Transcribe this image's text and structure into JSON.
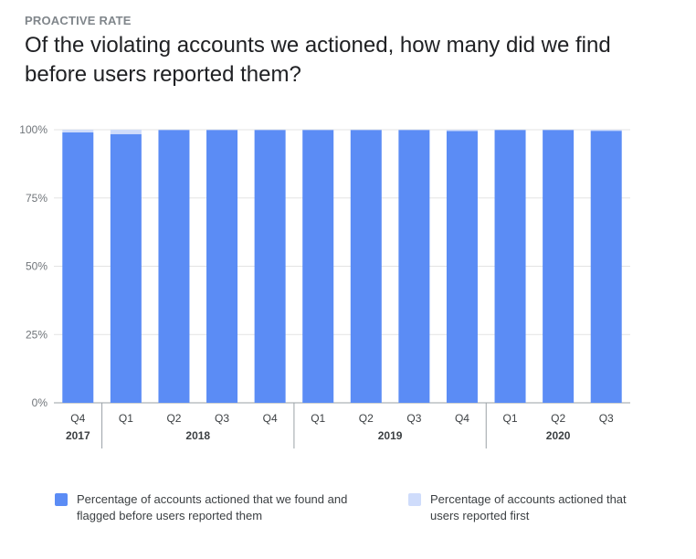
{
  "header": {
    "eyebrow": "PROACTIVE RATE",
    "title": "Of the violating accounts we actioned, how many did we find before users reported them?"
  },
  "chart_data": {
    "type": "bar",
    "stacked": true,
    "categories": [
      "Q4",
      "Q1",
      "Q2",
      "Q3",
      "Q4",
      "Q1",
      "Q2",
      "Q3",
      "Q4",
      "Q1",
      "Q2",
      "Q3"
    ],
    "year_groups": [
      {
        "label": "2017",
        "count": 1
      },
      {
        "label": "2018",
        "count": 4
      },
      {
        "label": "2019",
        "count": 4
      },
      {
        "label": "2020",
        "count": 3
      }
    ],
    "series": [
      {
        "name": "Percentage of accounts actioned that we found and flagged before users reported them",
        "color": "#5b8cf5",
        "values": [
          99.0,
          98.4,
          99.9,
          99.9,
          99.9,
          99.9,
          99.9,
          99.9,
          99.5,
          99.9,
          99.9,
          99.6
        ]
      },
      {
        "name": "Percentage of accounts actioned that users reported first",
        "color": "#cfdcfb",
        "values": [
          1.0,
          1.6,
          0.1,
          0.1,
          0.1,
          0.1,
          0.1,
          0.1,
          0.5,
          0.1,
          0.1,
          0.4
        ]
      }
    ],
    "ylim": [
      0,
      100
    ],
    "yticks": [
      0,
      25,
      50,
      75,
      100
    ],
    "ytick_labels": [
      "0%",
      "25%",
      "50%",
      "75%",
      "100%"
    ],
    "grid": true,
    "legend_position": "bottom"
  }
}
